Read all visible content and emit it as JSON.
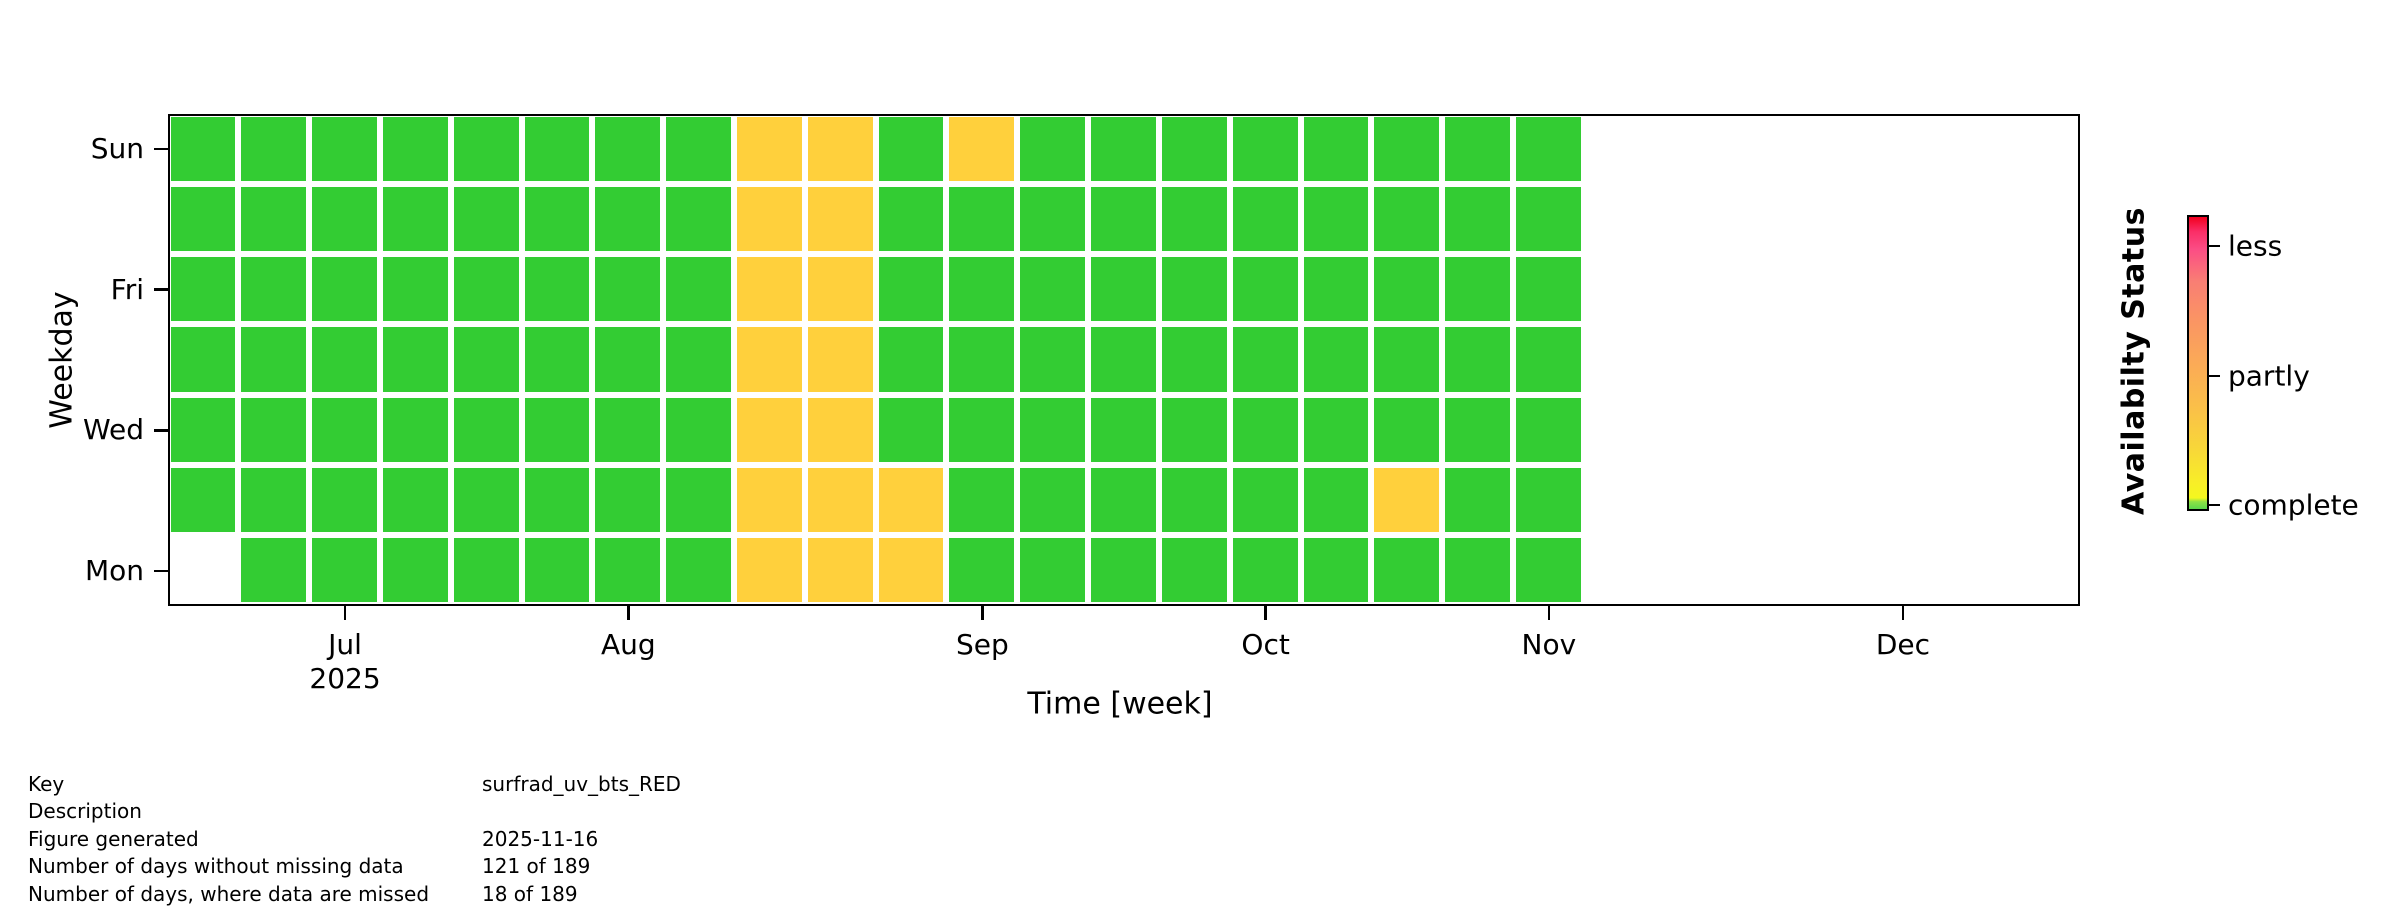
{
  "figure": {
    "background": "#ffffff"
  },
  "chart_data": {
    "type": "heatmap",
    "xlabel": "Time [week]",
    "ylabel": "Weekday",
    "rows_top_to_bottom": [
      "Sun",
      "Sat",
      "Fri",
      "Thu",
      "Wed",
      "Tue",
      "Mon"
    ],
    "y_ticks": [
      {
        "label": "Sun",
        "row_index": 0
      },
      {
        "label": "Fri",
        "row_index": 2
      },
      {
        "label": "Wed",
        "row_index": 4
      },
      {
        "label": "Mon",
        "row_index": 6
      }
    ],
    "num_week_columns": 27,
    "status_legend": {
      "c": "complete",
      "p": "partly",
      ".": "no data"
    },
    "matrix": [
      "ccccccccppcpcccccccc.......",
      "ccccccccppcccccccccc.......",
      "ccccccccppcccccccccc.......",
      "ccccccccppcccccccccc.......",
      "ccccccccppcccccccccc.......",
      "ccccccccpppccccccpcc.......",
      ".cccccccpppccccccccc......."
    ],
    "x_ticks": [
      {
        "label": "Jul",
        "sublabel": "2025",
        "week_col": 3
      },
      {
        "label": "Aug",
        "sublabel": "",
        "week_col": 7
      },
      {
        "label": "Sep",
        "sublabel": "",
        "week_col": 12
      },
      {
        "label": "Oct",
        "sublabel": "",
        "week_col": 16
      },
      {
        "label": "Nov",
        "sublabel": "",
        "week_col": 20
      },
      {
        "label": "Dec",
        "sublabel": "",
        "week_col": 25
      }
    ],
    "cell_colors": {
      "complete": "#33cc33",
      "partly": "#ffd03c"
    },
    "colorbar": {
      "title": "Availabilty Status",
      "ticks": [
        {
          "label": "less",
          "pos": 0.106
        },
        {
          "label": "partly",
          "pos": 0.551
        },
        {
          "label": "complete",
          "pos": 0.993
        }
      ],
      "gradient_stops": [
        {
          "pos": 0.0,
          "color": "#f2001f"
        },
        {
          "pos": 0.05,
          "color": "#fa2e67"
        },
        {
          "pos": 0.11,
          "color": "#fb4d85"
        },
        {
          "pos": 0.22,
          "color": "#f97e74"
        },
        {
          "pos": 0.35,
          "color": "#fa9464"
        },
        {
          "pos": 0.5,
          "color": "#fbaa57"
        },
        {
          "pos": 0.65,
          "color": "#fabf49"
        },
        {
          "pos": 0.8,
          "color": "#f8d838"
        },
        {
          "pos": 0.91,
          "color": "#f8ee28"
        },
        {
          "pos": 0.962,
          "color": "#f4f71f"
        },
        {
          "pos": 0.975,
          "color": "#8ee245"
        },
        {
          "pos": 1.0,
          "color": "#5bd74d"
        }
      ]
    }
  },
  "footer": {
    "rows": [
      {
        "label": "Key",
        "value": "surfrad_uv_bts_RED"
      },
      {
        "label": "Description",
        "value": ""
      },
      {
        "label": "Figure generated",
        "value": "2025-11-16"
      },
      {
        "label": "Number of days without missing data",
        "value": "121 of 189"
      },
      {
        "label": "Number of days, where data are missed",
        "value": "18 of 189"
      }
    ]
  }
}
